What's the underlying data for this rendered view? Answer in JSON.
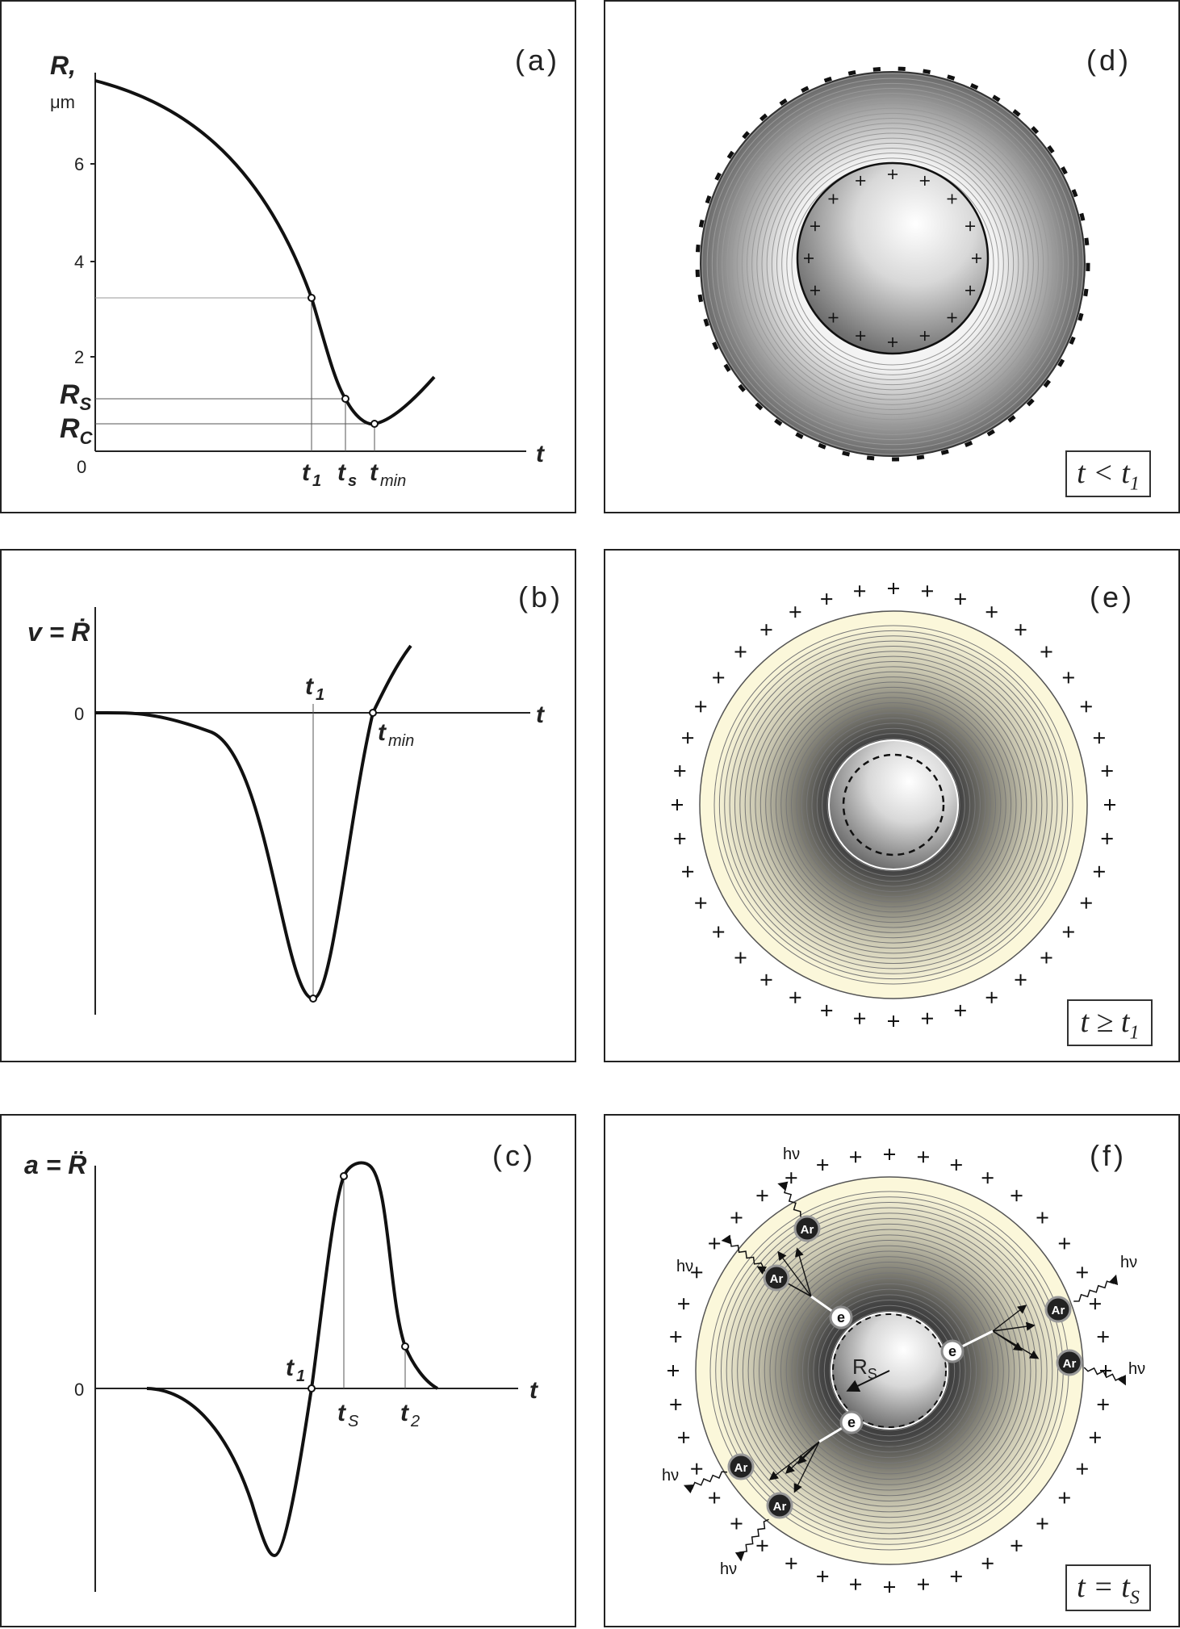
{
  "panels": {
    "a": {
      "tag": "(a)",
      "ylabel": "R,",
      "yunit": "μm",
      "ticks": [
        "6",
        "4",
        "2",
        "0"
      ],
      "xlabel": "t",
      "rs": "R",
      "rs_sub": "S",
      "rc": "R",
      "rc_sub": "C",
      "t1": "t",
      "t1_sub": "1",
      "ts": "t",
      "ts_sub": "s",
      "tmin": "t",
      "tmin_sub": "min"
    },
    "b": {
      "tag": "(b)",
      "ylabel": "v = Ṙ",
      "zero": "0",
      "xlabel": "t",
      "t1": "t",
      "t1_sub": "1",
      "tmin": "t",
      "tmin_sub": "min"
    },
    "c": {
      "tag": "(c)",
      "ylabel": "a = R̈",
      "zero": "0",
      "xlabel": "t",
      "t1": "t",
      "t1_sub": "1",
      "ts": "t",
      "ts_sub": "S",
      "t2": "t",
      "t2_sub": "2"
    },
    "d": {
      "tag": "(d)",
      "cond": "t < t",
      "cond_sub": "1"
    },
    "e": {
      "tag": "(e)",
      "cond": "t ≥ t",
      "cond_sub": "1"
    },
    "f": {
      "tag": "(f)",
      "cond": "t = t",
      "cond_sub": "S",
      "rs": "R",
      "rs_sub": "S",
      "ar": "Ar",
      "e": "e",
      "hv": "hν"
    }
  },
  "chart_data": [
    {
      "type": "line",
      "title": "",
      "xlabel": "t",
      "ylabel": "R, μm",
      "yticks": [
        0,
        2,
        4,
        6
      ],
      "annotations": [
        "t1",
        "ts",
        "tmin",
        "RS",
        "RC"
      ]
    },
    {
      "type": "line",
      "title": "",
      "xlabel": "t",
      "ylabel": "v = Ṙ",
      "yticks": [
        0
      ],
      "annotations": [
        "t1",
        "tmin"
      ]
    },
    {
      "type": "line",
      "title": "",
      "xlabel": "t",
      "ylabel": "a = R̈",
      "yticks": [
        0
      ],
      "annotations": [
        "t1",
        "tS",
        "t2"
      ]
    }
  ],
  "colors": {
    "ink": "#222222",
    "cream": "#faf5d2",
    "gray_dark": "#555555"
  }
}
